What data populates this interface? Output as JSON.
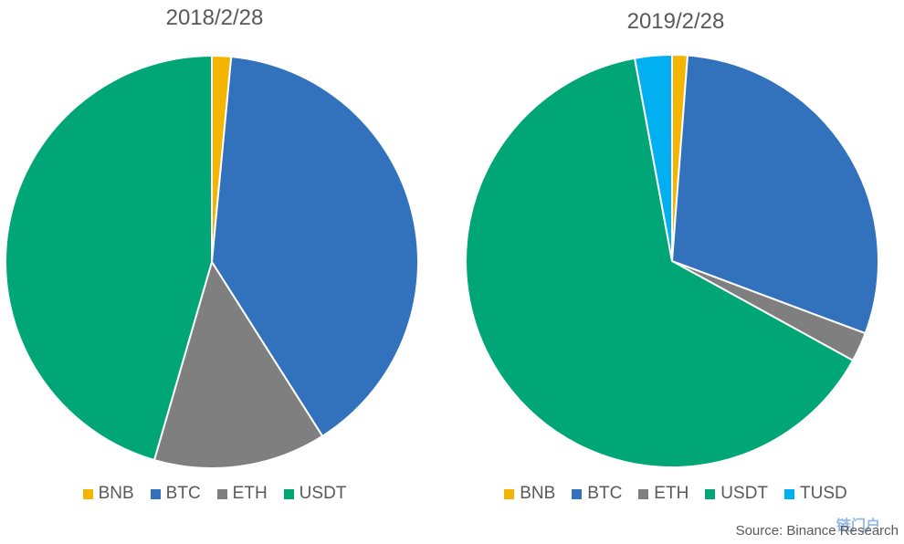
{
  "chart_data": [
    {
      "type": "pie",
      "title": "2018/2/28",
      "categories": [
        "BNB",
        "BTC",
        "ETH",
        "USDT"
      ],
      "values": [
        1.5,
        39.5,
        13.5,
        45.5
      ],
      "colors": [
        "#f4b400",
        "#3272bd",
        "#7f7f7f",
        "#00a675"
      ],
      "legend_position": "bottom"
    },
    {
      "type": "pie",
      "title": "2019/2/28",
      "categories": [
        "BNB",
        "BTC",
        "ETH",
        "USDT",
        "TUSD"
      ],
      "values": [
        1.2,
        29.5,
        2.3,
        64.1,
        2.9
      ],
      "colors": [
        "#f4b400",
        "#3272bd",
        "#7f7f7f",
        "#00a675",
        "#00b0f0"
      ],
      "legend_position": "bottom"
    }
  ],
  "source": "Source: Binance Research",
  "watermark": "链门户"
}
